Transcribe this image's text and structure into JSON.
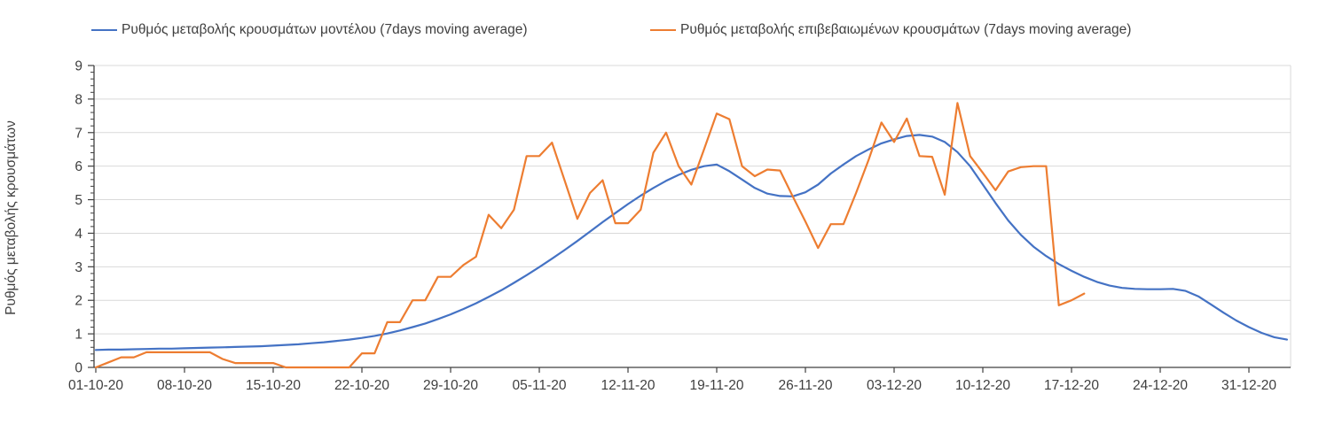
{
  "legend": {
    "items": [
      {
        "label": "Ρυθμός μεταβολής κρουσμάτων μοντέλου (7days moving average)",
        "color": "#4472C4"
      },
      {
        "label": "Ρυθμός μεταβολής επιβεβαιωμένων κρουσμάτων (7days moving average)",
        "color": "#ED7D31"
      }
    ]
  },
  "axes": {
    "y_title": "Ρυθμός μεταβολής κρουσμάτων",
    "y_tick_labels": [
      "0",
      "1",
      "2",
      "3",
      "4",
      "5",
      "6",
      "7",
      "8",
      "9"
    ],
    "x_tick_labels": [
      "01-10-20",
      "08-10-20",
      "15-10-20",
      "22-10-20",
      "29-10-20",
      "05-11-20",
      "12-11-20",
      "19-11-20",
      "26-11-20",
      "03-12-20",
      "10-12-20",
      "17-12-20",
      "24-12-20",
      "31-12-20"
    ]
  },
  "colors": {
    "model_line": "#4472C4",
    "confirmed_line": "#ED7D31",
    "gridline": "#D9D9D9",
    "axis": "#404040",
    "text": "#3f3f3f"
  },
  "chart_data": {
    "type": "line",
    "title": "",
    "xlabel": "",
    "ylabel": "Ρυθμός μεταβολής κρουσμάτων",
    "ylim": [
      0,
      9
    ],
    "y_ticks": [
      0,
      1,
      2,
      3,
      4,
      5,
      6,
      7,
      8,
      9
    ],
    "grid": true,
    "legend_position": "top",
    "x_start_date": "01-10-20",
    "x_interval": "daily",
    "x_tick_every_days": 7,
    "x_tick_labels": [
      "01-10-20",
      "08-10-20",
      "15-10-20",
      "22-10-20",
      "29-10-20",
      "05-11-20",
      "12-11-20",
      "19-11-20",
      "26-11-20",
      "03-12-20",
      "10-12-20",
      "17-12-20",
      "24-12-20",
      "31-12-20"
    ],
    "series": [
      {
        "name": "Ρυθμός μεταβολής κρουσμάτων μοντέλου (7days moving average)",
        "color": "#4472C4",
        "values": [
          0.52,
          0.53,
          0.53,
          0.54,
          0.55,
          0.56,
          0.56,
          0.57,
          0.58,
          0.59,
          0.6,
          0.61,
          0.62,
          0.63,
          0.65,
          0.67,
          0.69,
          0.72,
          0.75,
          0.79,
          0.83,
          0.88,
          0.94,
          1.01,
          1.1,
          1.2,
          1.31,
          1.44,
          1.58,
          1.74,
          1.91,
          2.1,
          2.3,
          2.52,
          2.75,
          2.99,
          3.24,
          3.5,
          3.77,
          4.05,
          4.33,
          4.6,
          4.87,
          5.12,
          5.35,
          5.56,
          5.74,
          5.89,
          6.0,
          6.05,
          5.85,
          5.6,
          5.35,
          5.18,
          5.11,
          5.1,
          5.22,
          5.45,
          5.78,
          6.05,
          6.3,
          6.5,
          6.68,
          6.8,
          6.9,
          6.93,
          6.88,
          6.72,
          6.42,
          6.0,
          5.45,
          4.9,
          4.38,
          3.95,
          3.6,
          3.32,
          3.08,
          2.88,
          2.7,
          2.55,
          2.44,
          2.37,
          2.34,
          2.33,
          2.33,
          2.34,
          2.28,
          2.12,
          1.88,
          1.63,
          1.4,
          1.2,
          1.03,
          0.9,
          0.83
        ]
      },
      {
        "name": "Ρυθμός μεταβολής επιβεβαιωμένων κρουσμάτων (7days moving average)",
        "color": "#ED7D31",
        "values": [
          0.0,
          0.15,
          0.3,
          0.3,
          0.45,
          0.45,
          0.45,
          0.45,
          0.45,
          0.45,
          0.25,
          0.13,
          0.13,
          0.13,
          0.13,
          0.0,
          0.0,
          0.0,
          0.0,
          0.0,
          0.0,
          0.42,
          0.42,
          1.35,
          1.35,
          2.0,
          2.0,
          2.7,
          2.7,
          3.05,
          3.3,
          4.55,
          4.15,
          4.7,
          6.3,
          6.3,
          6.7,
          5.57,
          4.43,
          5.2,
          5.58,
          4.3,
          4.3,
          4.7,
          6.4,
          7.0,
          6.0,
          5.45,
          6.5,
          7.57,
          7.4,
          6.0,
          5.7,
          5.9,
          5.87,
          5.1,
          4.35,
          3.56,
          4.27,
          4.27,
          5.2,
          6.2,
          7.3,
          6.72,
          7.42,
          6.3,
          6.28,
          5.15,
          7.88,
          6.3,
          5.8,
          5.28,
          5.84,
          5.97,
          6.0,
          6.0,
          1.85,
          2.0,
          2.2
        ]
      }
    ]
  }
}
